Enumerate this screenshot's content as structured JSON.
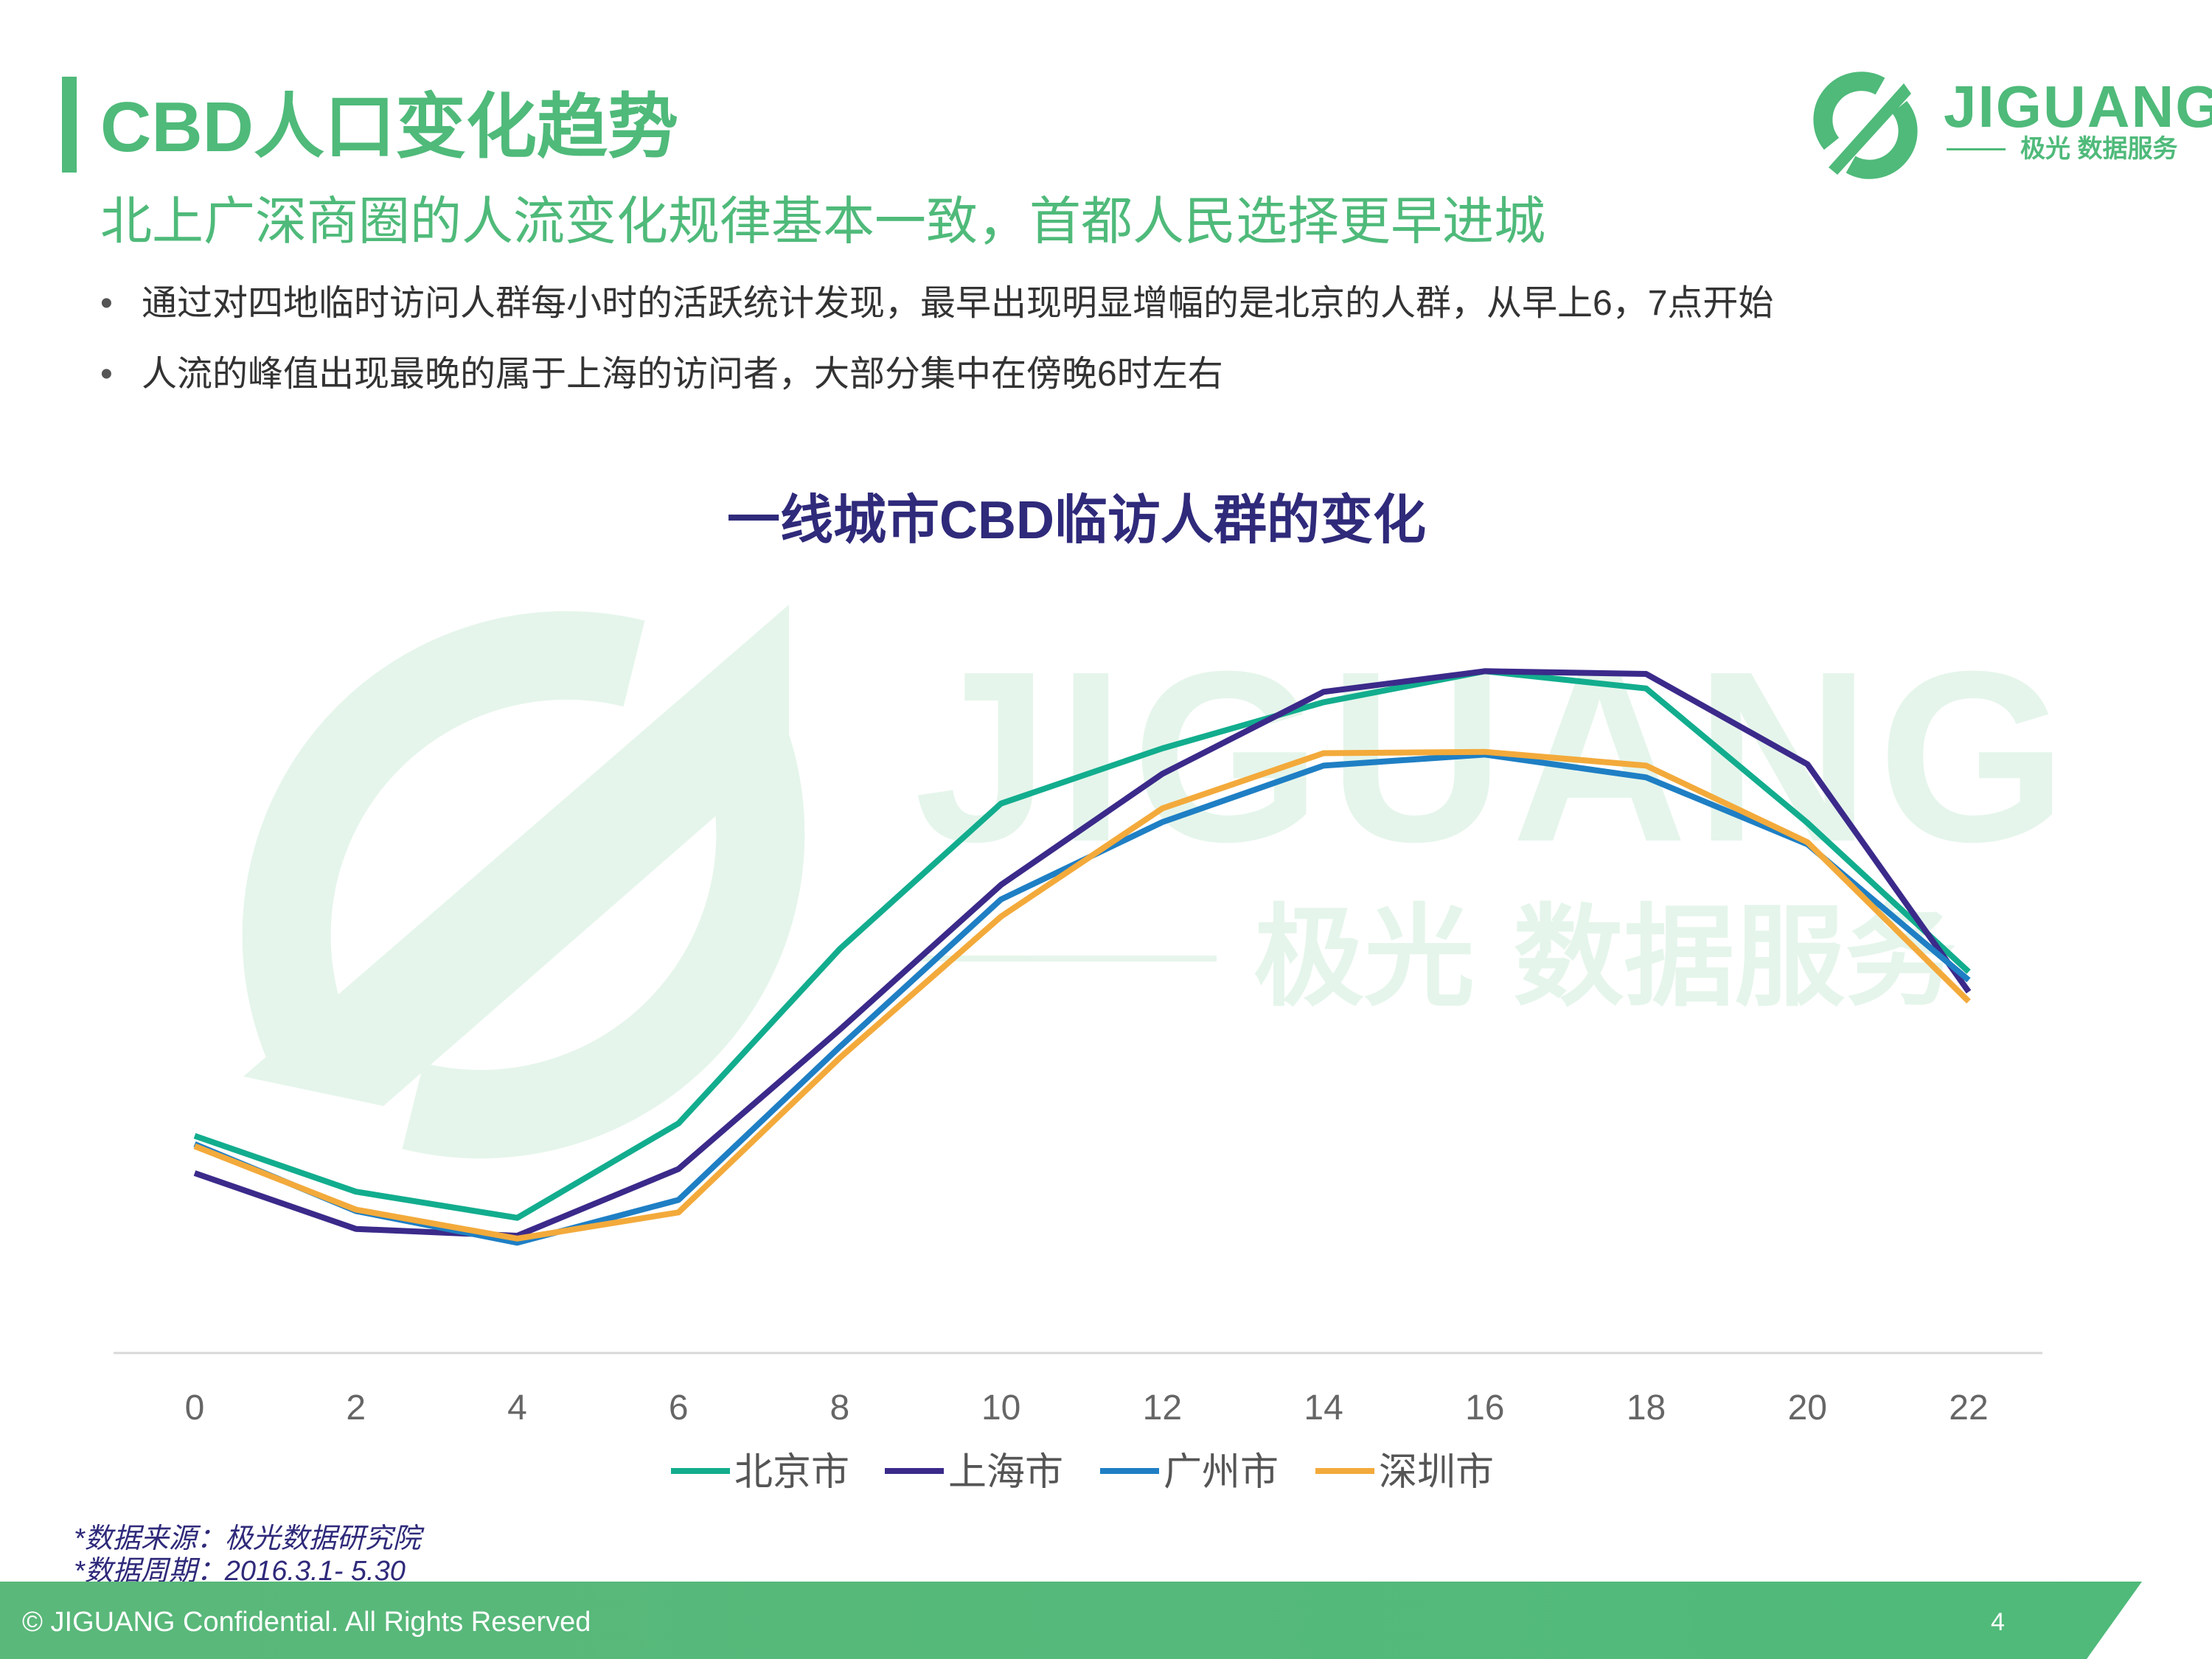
{
  "header": {
    "title": "CBD人口变化趋势",
    "subtitle": "北上广深商圈的人流变化规律基本一致，首都人民选择更早进城",
    "bullets": [
      "通过对四地临时访问人群每小时的活跃统计发现，最早出现明显增幅的是北京的人群，从早上6，7点开始",
      "人流的峰值出现最晚的属于上海的访问者，大部分集中在傍晚6时左右"
    ],
    "bullet_symbol": "•"
  },
  "logo": {
    "name": "JIGUANG",
    "sub": "极光 数据服务",
    "icon": "jiguang-logo-icon"
  },
  "watermark": {
    "text": "JIGUANG",
    "sub": "极光 数据服务"
  },
  "chart_data": {
    "type": "line",
    "title": "一线城市CBD临访人群的变化",
    "x": [
      0,
      2,
      4,
      6,
      8,
      10,
      12,
      14,
      16,
      18,
      20,
      22
    ],
    "x_tick_labels": [
      "0",
      "2",
      "4",
      "6",
      "8",
      "10",
      "12",
      "14",
      "16",
      "18",
      "20",
      "22"
    ],
    "ylim": [
      0,
      100
    ],
    "grid": false,
    "y_axis_visible": false,
    "legend_position": "bottom",
    "series": [
      {
        "name": "北京市",
        "color": "#12ad8e",
        "values": [
          31.5,
          23.4,
          19.6,
          33.3,
          58.6,
          79.7,
          87.7,
          94.4,
          98.9,
          96.4,
          76.9,
          55.3
        ]
      },
      {
        "name": "上海市",
        "color": "#3b2a8a",
        "values": [
          26.1,
          18.0,
          17.0,
          26.7,
          46.9,
          67.9,
          84.0,
          95.9,
          98.9,
          98.5,
          85.4,
          52.4
        ]
      },
      {
        "name": "广州市",
        "color": "#1f7fc4",
        "values": [
          30.3,
          20.6,
          16.0,
          22.2,
          44.4,
          65.8,
          77.0,
          85.2,
          86.8,
          83.5,
          73.8,
          54.1
        ]
      },
      {
        "name": "深圳市",
        "color": "#f3aa3b",
        "values": [
          30.0,
          20.8,
          16.6,
          20.4,
          42.8,
          63.3,
          79.0,
          87.0,
          87.2,
          85.2,
          74.1,
          51.0
        ]
      }
    ]
  },
  "source": {
    "line1": "*数据来源：极光数据研究院",
    "line2": "*数据周期：2016.3.1- 5.30"
  },
  "footer": {
    "text": "© JIGUANG Confidential. All Rights Reserved",
    "page": "4",
    "color": "#4fba7a"
  }
}
